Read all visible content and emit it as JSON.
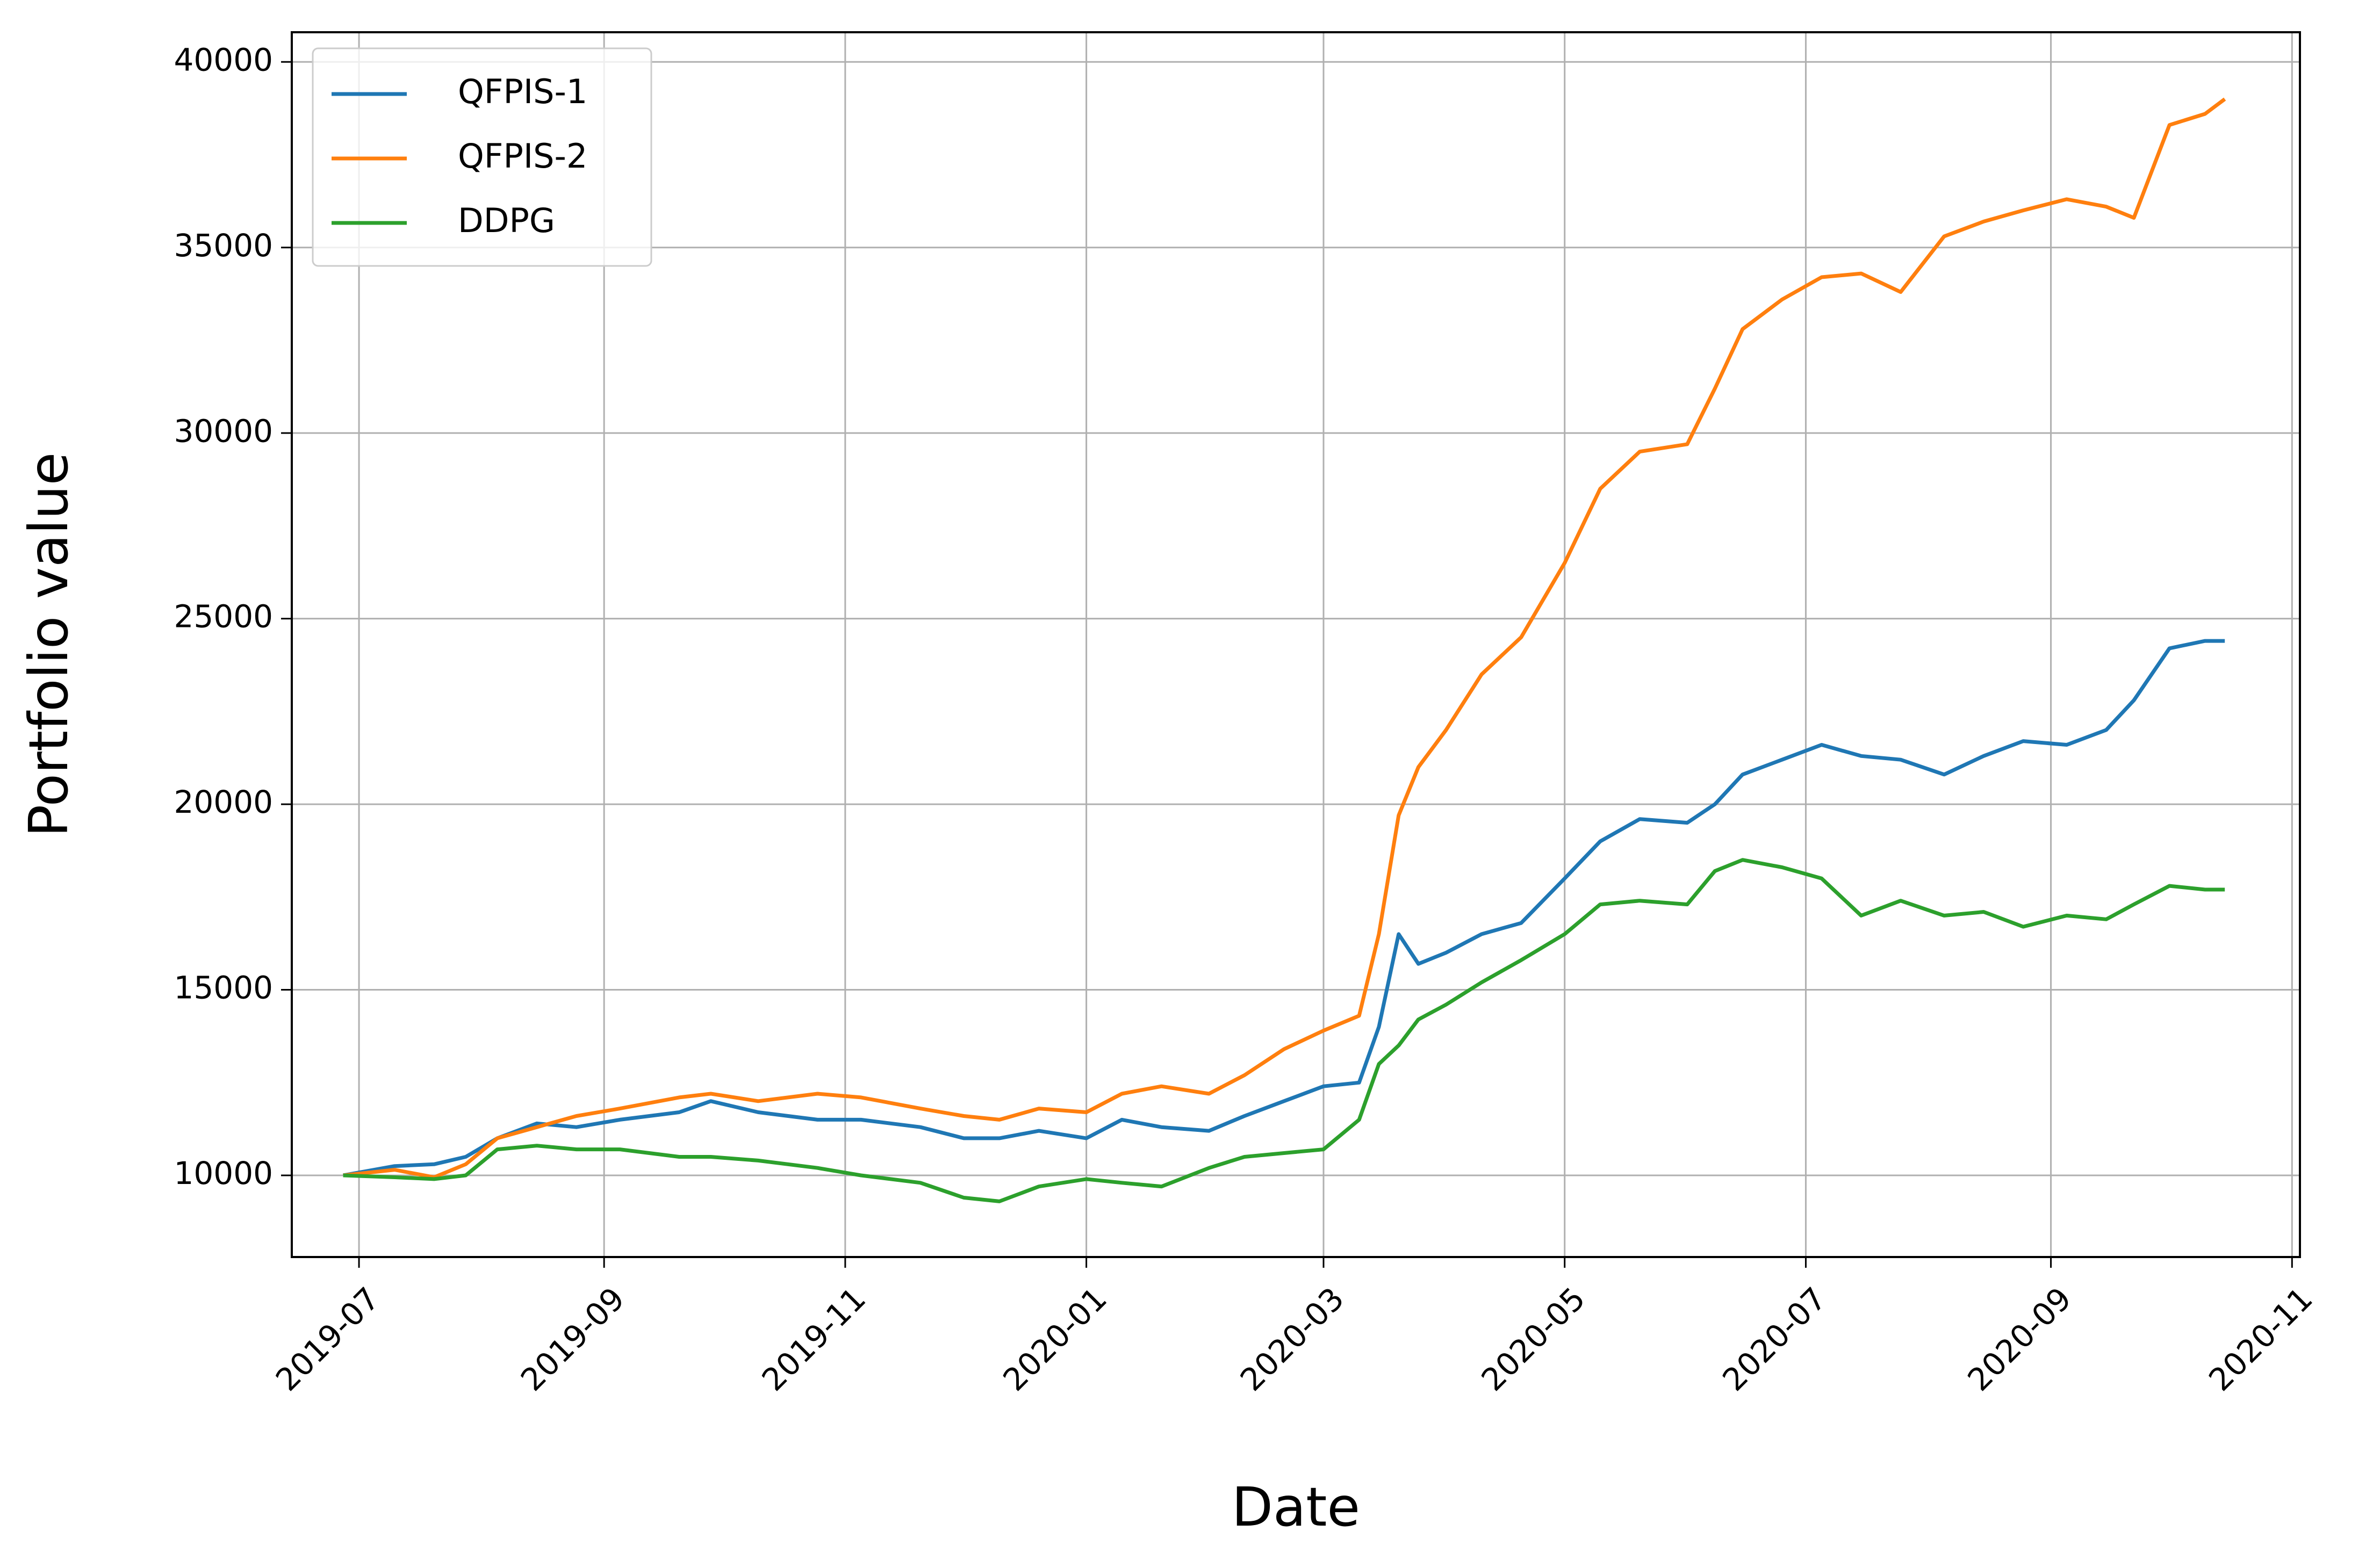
{
  "chart_data": {
    "type": "line",
    "title": "",
    "xlabel": "Date",
    "ylabel": "Portfolio value",
    "x_ticks": [
      "2019-07",
      "2019-09",
      "2019-11",
      "2020-01",
      "2020-03",
      "2020-05",
      "2020-07",
      "2020-09",
      "2020-11"
    ],
    "y_ticks": [
      10000,
      15000,
      20000,
      25000,
      30000,
      35000,
      40000
    ],
    "xlim": [
      "2019-06-14",
      "2020-11-03"
    ],
    "ylim": [
      7800,
      40800
    ],
    "grid": true,
    "legend_position": "top-left",
    "x": [
      "2019-06-27",
      "2019-07-10",
      "2019-07-20",
      "2019-07-28",
      "2019-08-05",
      "2019-08-15",
      "2019-08-25",
      "2019-09-05",
      "2019-09-20",
      "2019-09-28",
      "2019-10-10",
      "2019-10-25",
      "2019-11-05",
      "2019-11-20",
      "2019-12-01",
      "2019-12-10",
      "2019-12-20",
      "2020-01-01",
      "2020-01-10",
      "2020-01-20",
      "2020-02-01",
      "2020-02-10",
      "2020-02-20",
      "2020-03-01",
      "2020-03-10",
      "2020-03-15",
      "2020-03-20",
      "2020-03-25",
      "2020-04-01",
      "2020-04-10",
      "2020-04-20",
      "2020-05-01",
      "2020-05-10",
      "2020-05-20",
      "2020-06-01",
      "2020-06-08",
      "2020-06-15",
      "2020-06-25",
      "2020-07-05",
      "2020-07-15",
      "2020-07-25",
      "2020-08-05",
      "2020-08-15",
      "2020-08-25",
      "2020-09-05",
      "2020-09-15",
      "2020-09-22",
      "2020-10-01",
      "2020-10-10",
      "2020-10-15"
    ],
    "series": [
      {
        "name": "QFPIS-1",
        "color": "#1f77b4",
        "values": [
          10000,
          10250,
          10300,
          10500,
          11000,
          11400,
          11300,
          11500,
          11700,
          12000,
          11700,
          11500,
          11500,
          11300,
          11000,
          11000,
          11200,
          11000,
          11500,
          11300,
          11200,
          11600,
          12000,
          12400,
          12500,
          14000,
          16500,
          15700,
          16000,
          16500,
          16800,
          18000,
          19000,
          19600,
          19500,
          20000,
          20800,
          21200,
          21600,
          21300,
          21200,
          20800,
          21300,
          21700,
          21600,
          22000,
          22800,
          24200,
          24400,
          24400
        ]
      },
      {
        "name": "QFPIS-2",
        "color": "#ff7f0e",
        "values": [
          10000,
          10150,
          9950,
          10300,
          11000,
          11300,
          11600,
          11800,
          12100,
          12200,
          12000,
          12200,
          12100,
          11800,
          11600,
          11500,
          11800,
          11700,
          12200,
          12400,
          12200,
          12700,
          13400,
          13900,
          14300,
          16500,
          19700,
          21000,
          22000,
          23500,
          24500,
          26500,
          28500,
          29500,
          29700,
          31200,
          32800,
          33600,
          34200,
          34300,
          33800,
          35300,
          35700,
          36000,
          36300,
          36100,
          35800,
          38300,
          38600,
          39000
        ]
      },
      {
        "name": "DDPG",
        "color": "#2ca02c",
        "values": [
          10000,
          9950,
          9900,
          10000,
          10700,
          10800,
          10700,
          10700,
          10500,
          10500,
          10400,
          10200,
          10000,
          9800,
          9400,
          9300,
          9700,
          9900,
          9800,
          9700,
          10200,
          10500,
          10600,
          10700,
          11500,
          13000,
          13500,
          14200,
          14600,
          15200,
          15800,
          16500,
          17300,
          17400,
          17300,
          18200,
          18500,
          18300,
          18000,
          17000,
          17400,
          17000,
          17100,
          16700,
          17000,
          16900,
          17300,
          17800,
          17700,
          17700
        ]
      }
    ]
  }
}
